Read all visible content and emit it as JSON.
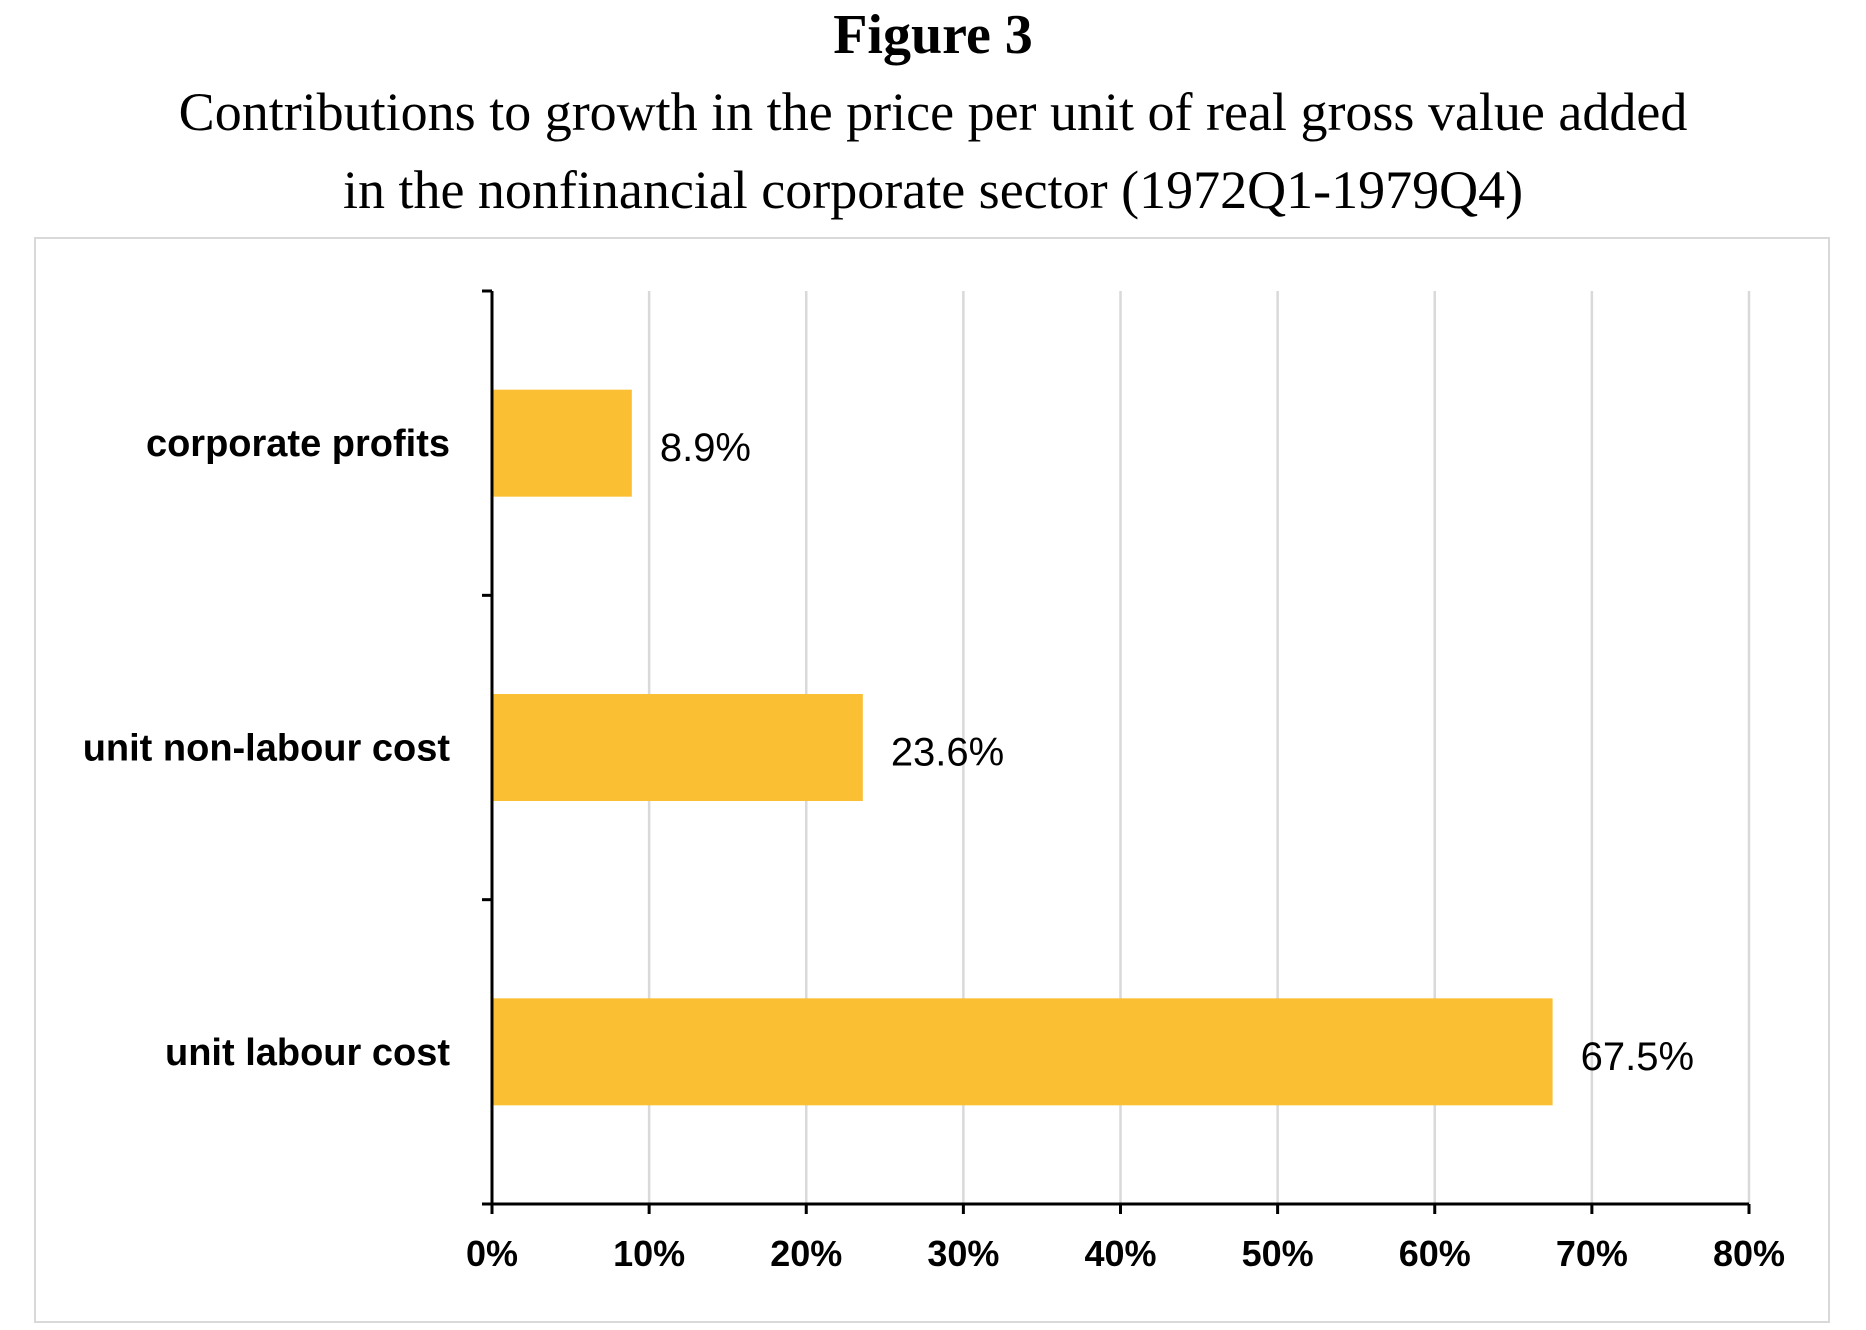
{
  "figure": {
    "label": "Figure 3",
    "title_line1": "Contributions to growth in the price per unit of real gross value added",
    "title_line2": "in the nonfinancial corporate sector (1972Q1-1979Q4)"
  },
  "colors": {
    "bar": "#fbbf33",
    "grid": "#d9d9d9",
    "axis": "#000000",
    "frame": "#d9d9d9"
  },
  "chart_data": {
    "type": "bar",
    "orientation": "horizontal",
    "categories": [
      "corporate profits",
      "unit non-labour cost",
      "unit labour cost"
    ],
    "values": [
      8.9,
      23.6,
      67.5
    ],
    "value_labels": [
      "8.9%",
      "23.6%",
      "67.5%"
    ],
    "xlim": [
      0,
      80
    ],
    "xticks": [
      0,
      10,
      20,
      30,
      40,
      50,
      60,
      70,
      80
    ],
    "xtick_labels": [
      "0%",
      "10%",
      "20%",
      "30%",
      "40%",
      "50%",
      "60%",
      "70%",
      "80%"
    ],
    "grid": "vertical",
    "legend": "none"
  }
}
